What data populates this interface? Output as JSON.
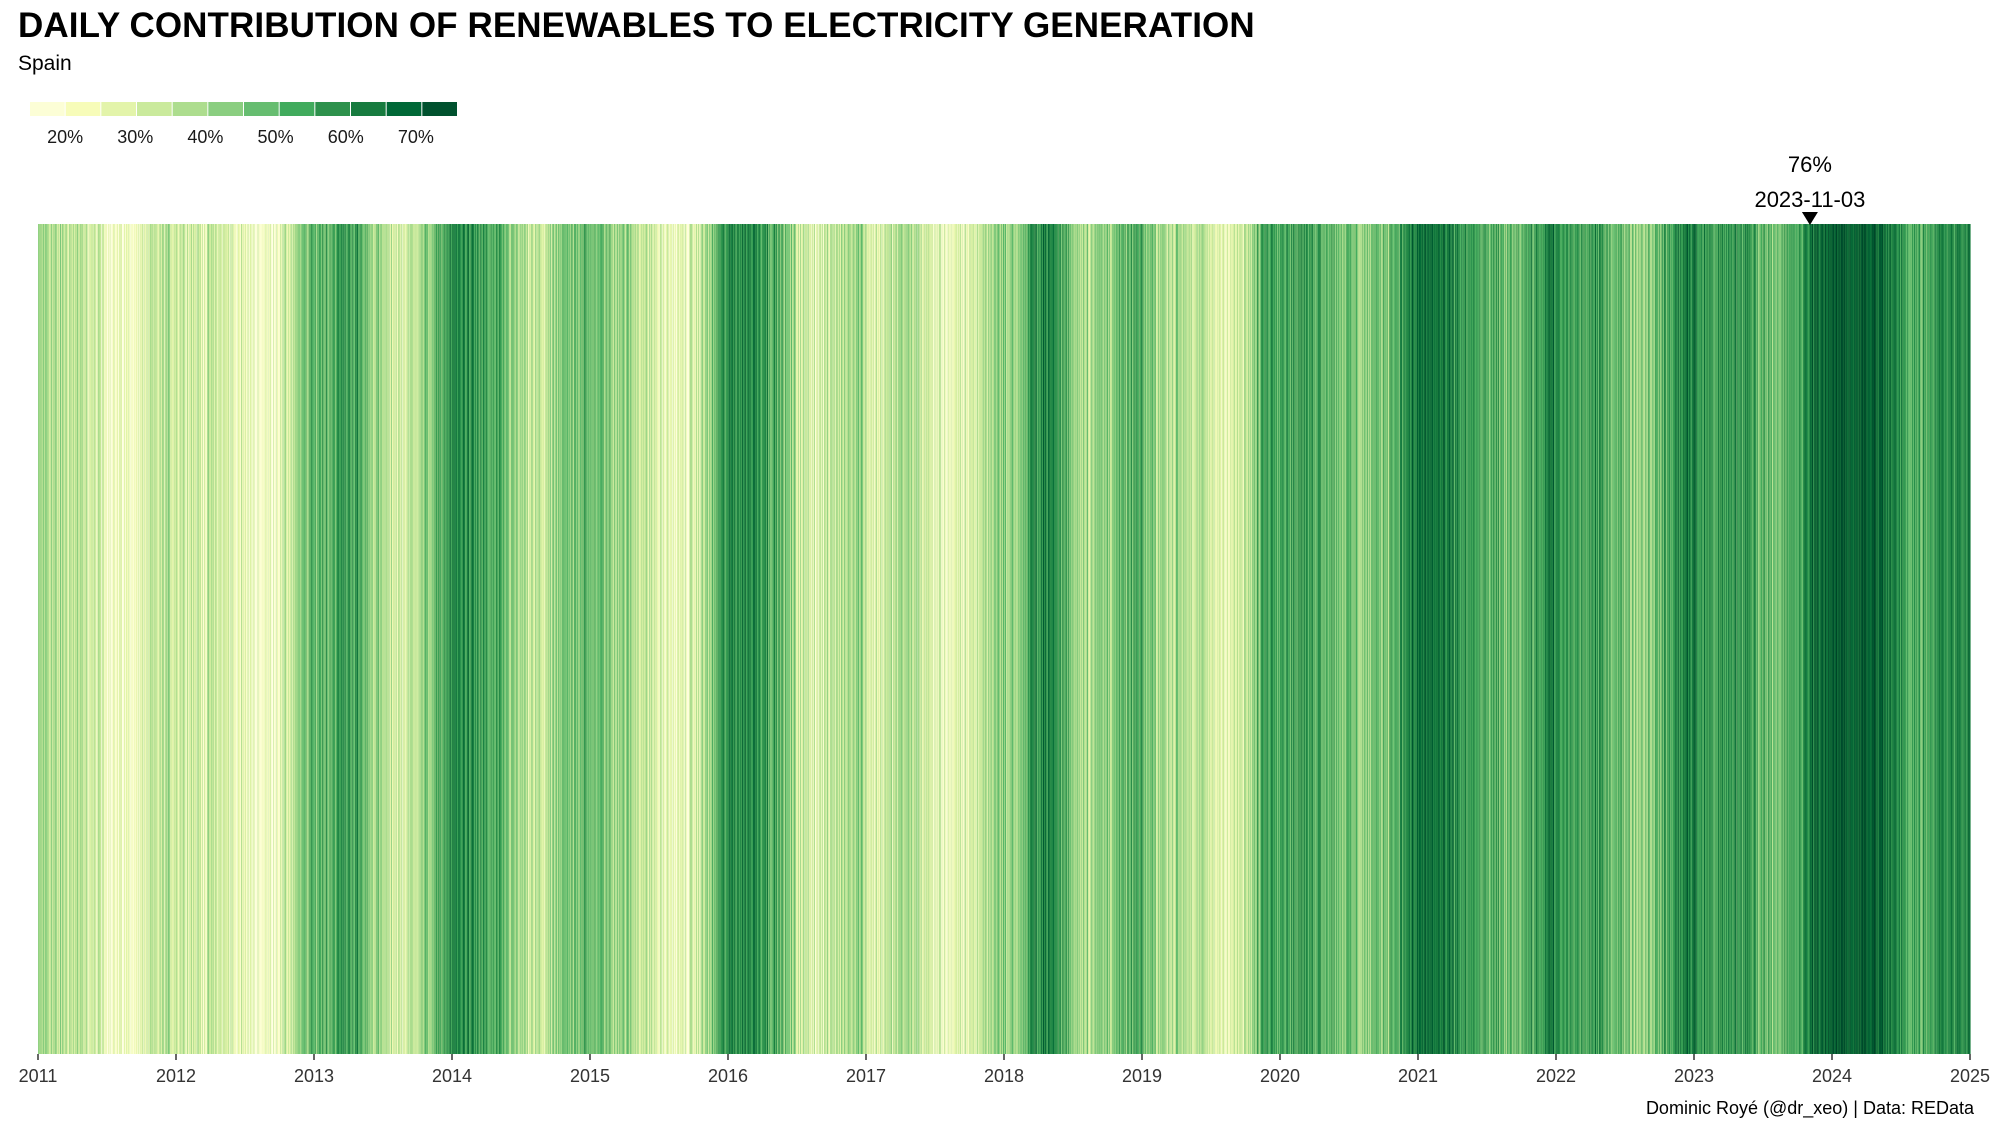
{
  "title": "DAILY CONTRIBUTION OF RENEWABLES TO ELECTRICITY GENERATION",
  "subtitle": "Spain",
  "caption": "Dominic Royé (@dr_xeo) | Data: REData",
  "colors": {
    "scale": [
      "#ffffe5",
      "#f7fcb9",
      "#d9f0a3",
      "#addd8e",
      "#78c679",
      "#41ab5d",
      "#238443",
      "#006837",
      "#004529"
    ],
    "marker": "#000000",
    "axis": "#333333"
  },
  "chart_data": {
    "type": "heatmap",
    "description": "warming-stripes style daily stripes, one per day",
    "x_unit": "year",
    "xlim": [
      2011,
      2025
    ],
    "x_ticks": [
      "2011",
      "2012",
      "2013",
      "2014",
      "2015",
      "2016",
      "2017",
      "2018",
      "2019",
      "2020",
      "2021",
      "2022",
      "2023",
      "2024",
      "2025"
    ],
    "value_unit": "% renewables",
    "value_range": [
      15,
      76
    ],
    "legend": {
      "position": "top-left",
      "ticks": [
        "20%",
        "30%",
        "40%",
        "50%",
        "60%",
        "70%"
      ],
      "tick_values": [
        20,
        30,
        40,
        50,
        60,
        70
      ]
    },
    "monthly_profile_percent": [
      [
        38,
        36,
        35,
        34,
        30,
        27,
        22,
        20,
        22,
        27,
        31,
        34
      ],
      [
        34,
        31,
        29,
        32,
        28,
        25,
        21,
        20,
        22,
        29,
        36,
        46
      ],
      [
        50,
        51,
        56,
        55,
        46,
        40,
        32,
        30,
        33,
        40,
        47,
        55
      ],
      [
        61,
        57,
        54,
        51,
        45,
        39,
        33,
        31,
        34,
        42,
        47,
        49
      ],
      [
        46,
        44,
        42,
        40,
        35,
        30,
        25,
        23,
        24,
        32,
        40,
        55
      ],
      [
        62,
        60,
        62,
        56,
        48,
        40,
        31,
        28,
        29,
        33,
        40,
        42
      ],
      [
        28,
        30,
        35,
        37,
        34,
        30,
        25,
        23,
        25,
        30,
        36,
        44
      ],
      [
        40,
        42,
        58,
        63,
        56,
        49,
        41,
        39,
        41,
        44,
        47,
        51
      ],
      [
        44,
        40,
        37,
        38,
        35,
        32,
        28,
        27,
        29,
        36,
        54,
        59
      ],
      [
        56,
        53,
        55,
        54,
        50,
        46,
        43,
        41,
        44,
        48,
        56,
        61
      ],
      [
        66,
        65,
        61,
        58,
        55,
        52,
        48,
        46,
        49,
        52,
        56,
        63
      ],
      [
        56,
        54,
        53,
        55,
        52,
        47,
        44,
        43,
        46,
        50,
        58,
        65
      ],
      [
        59,
        55,
        53,
        58,
        56,
        52,
        49,
        47,
        50,
        55,
        68,
        71
      ],
      [
        70,
        71,
        73,
        72,
        66,
        60,
        55,
        52,
        55,
        60,
        58,
        63
      ]
    ],
    "annotation": {
      "value_label": "76%",
      "date_label": "2023-11-03",
      "x": 2023.84
    }
  }
}
